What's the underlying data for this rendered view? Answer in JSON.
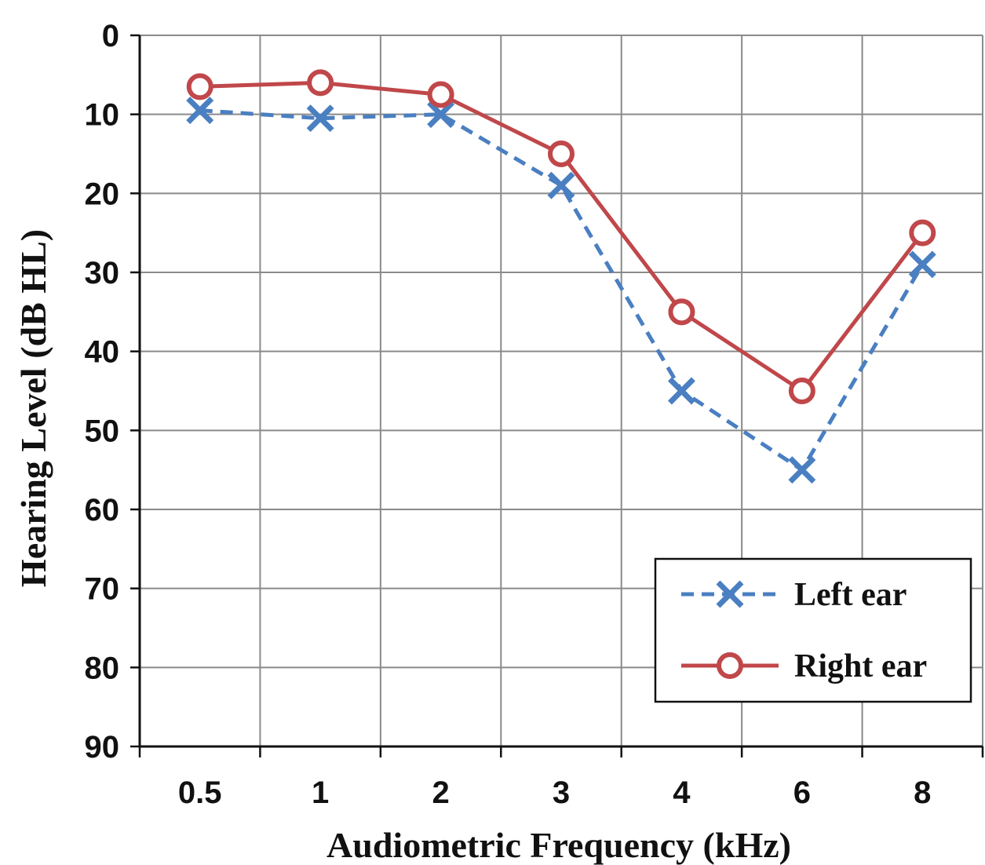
{
  "chart_data": {
    "type": "line",
    "categories": [
      "0.5",
      "1",
      "2",
      "3",
      "4",
      "6",
      "8"
    ],
    "xlabel": "Audiometric Frequency (kHz)",
    "ylabel": "Hearing Level (dB HL)",
    "ylim": [
      0,
      90
    ],
    "y_inverted": true,
    "yticks": [
      "0",
      "10",
      "20",
      "30",
      "40",
      "50",
      "60",
      "70",
      "80",
      "90"
    ],
    "grid": true,
    "legend_position": "bottom-right",
    "series": [
      {
        "name": "Left ear",
        "values": [
          9.5,
          10.5,
          10,
          19,
          45,
          55,
          29
        ],
        "color": "#4a7fc1",
        "line_style": "dashed",
        "marker": "x-icon"
      },
      {
        "name": "Right ear",
        "values": [
          6.5,
          6,
          7.5,
          15,
          35,
          45,
          25
        ],
        "color": "#c0474a",
        "line_style": "solid",
        "marker": "circle-icon"
      }
    ]
  }
}
